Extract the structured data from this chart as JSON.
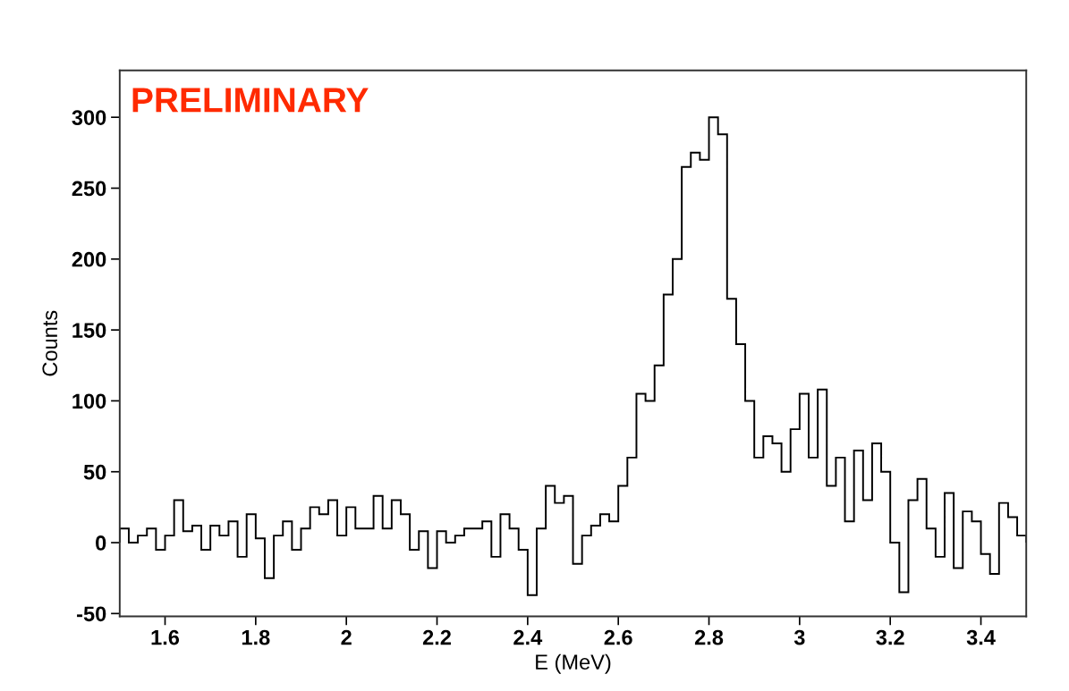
{
  "chart_data": {
    "type": "histogram",
    "xlabel": "E (MeV)",
    "ylabel": "Counts",
    "annotations": [
      "PRELIMINARY"
    ],
    "color": "#000000",
    "bins": [
      1.5,
      1.52,
      1.54,
      1.56,
      1.58,
      1.6,
      1.62,
      1.64,
      1.66,
      1.68,
      1.7,
      1.72,
      1.74,
      1.76,
      1.78,
      1.8,
      1.82,
      1.84,
      1.86,
      1.88,
      1.9,
      1.92,
      1.94,
      1.96,
      1.98,
      2.0,
      2.02,
      2.04,
      2.06,
      2.08,
      2.1,
      2.12,
      2.14,
      2.16,
      2.18,
      2.2,
      2.22,
      2.24,
      2.26,
      2.28,
      2.3,
      2.32,
      2.34,
      2.36,
      2.38,
      2.4,
      2.42,
      2.44,
      2.46,
      2.48,
      2.5,
      2.52,
      2.54,
      2.56,
      2.58,
      2.6,
      2.62,
      2.64,
      2.66,
      2.68,
      2.7,
      2.72,
      2.74,
      2.76,
      2.78,
      2.8,
      2.82,
      2.84,
      2.86,
      2.88,
      2.9,
      2.92,
      2.94,
      2.96,
      2.98,
      3.0,
      3.02,
      3.04,
      3.06,
      3.08,
      3.1,
      3.12,
      3.14,
      3.16,
      3.18,
      3.2,
      3.22,
      3.24,
      3.26,
      3.28,
      3.3,
      3.32,
      3.34,
      3.36,
      3.38,
      3.4,
      3.42,
      3.44,
      3.46,
      3.48,
      3.5
    ],
    "values": [
      10,
      0,
      5,
      10,
      -5,
      5,
      30,
      8,
      12,
      -5,
      12,
      5,
      15,
      -10,
      20,
      3,
      -25,
      5,
      15,
      -5,
      10,
      25,
      20,
      30,
      5,
      25,
      10,
      10,
      33,
      10,
      30,
      20,
      -5,
      8,
      -18,
      8,
      0,
      5,
      10,
      10,
      15,
      -10,
      20,
      10,
      -5,
      -37,
      10,
      40,
      28,
      33,
      -15,
      5,
      12,
      20,
      15,
      40,
      60,
      105,
      100,
      125,
      175,
      200,
      265,
      275,
      270,
      300,
      288,
      172,
      140,
      100,
      60,
      75,
      70,
      50,
      80,
      105,
      60,
      108,
      40,
      60,
      15,
      65,
      30,
      70,
      50,
      0,
      -35,
      30,
      45,
      10,
      -10,
      35,
      -18,
      22,
      15,
      -8,
      -22,
      28,
      18,
      5
    ],
    "xlim": [
      1.5,
      3.5
    ],
    "ylim": [
      -52,
      333
    ],
    "xticks": [
      1.6,
      1.8,
      2,
      2.2,
      2.4,
      2.6,
      2.8,
      3,
      3.2,
      3.4
    ],
    "yticks": [
      -50,
      0,
      50,
      100,
      150,
      200,
      250,
      300
    ],
    "grid": false
  }
}
